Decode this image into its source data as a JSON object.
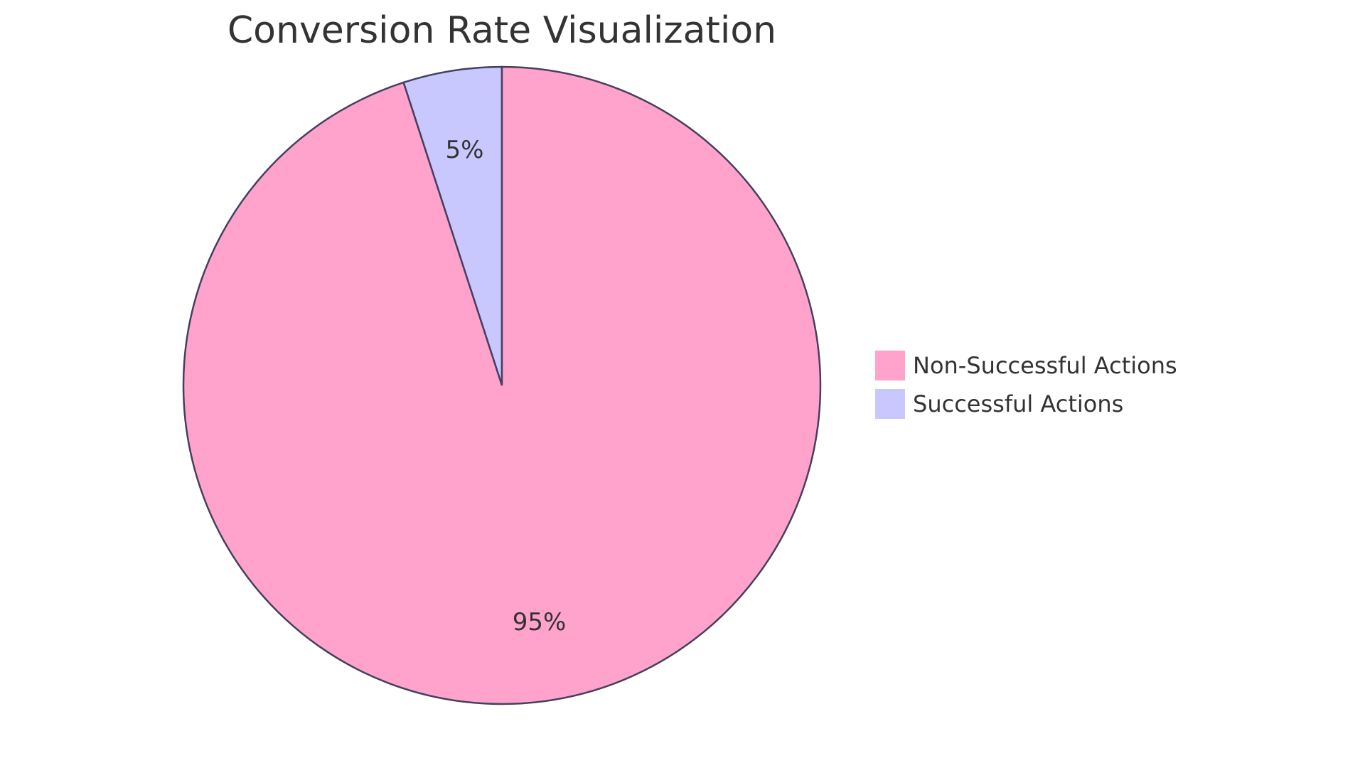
{
  "chart_data": {
    "type": "pie",
    "title": "Conversion Rate Visualization",
    "slices": [
      {
        "label": "Successful Actions",
        "value": 5,
        "display": "5%",
        "color": "#c8c8ff"
      },
      {
        "label": "Non-Successful Actions",
        "value": 95,
        "display": "95%",
        "color": "#ffa3cd"
      }
    ],
    "legend": {
      "position": "right",
      "entries": [
        {
          "label": "Non-Successful Actions",
          "color": "#ffa3cd"
        },
        {
          "label": "Successful Actions",
          "color": "#c8c8ff"
        }
      ]
    },
    "stroke_color": "#45405e"
  }
}
